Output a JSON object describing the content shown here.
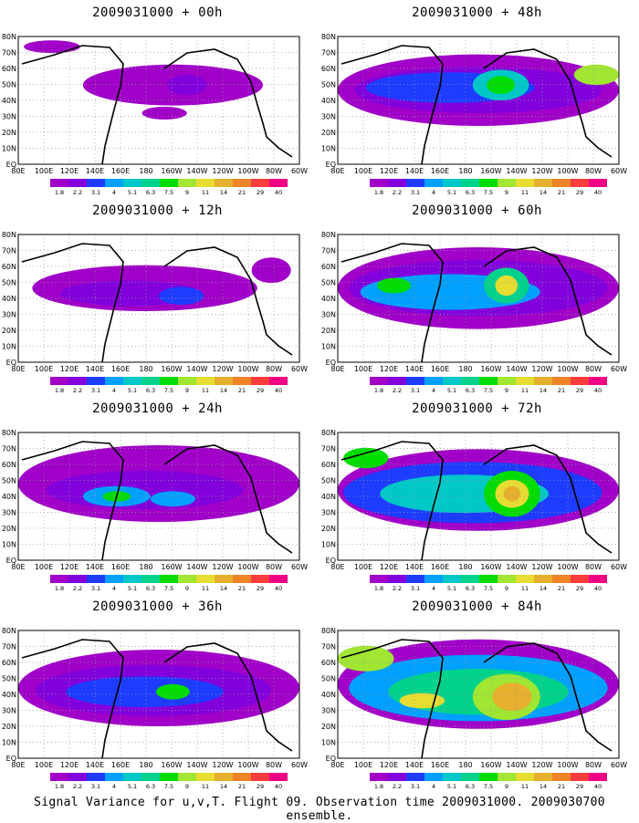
{
  "caption": "Signal Variance for u,v,T. Flight 09. Observation time 2009031000. 2009030700 ensemble.",
  "lat_labels": [
    "80N",
    "70N",
    "60N",
    "50N",
    "40N",
    "30N",
    "20N",
    "10N",
    "EQ"
  ],
  "lon_labels": [
    "80E",
    "100E",
    "120E",
    "140E",
    "160E",
    "180",
    "160W",
    "140W",
    "120W",
    "100W",
    "80W",
    "60W"
  ],
  "colorbar": {
    "labels": [
      "1.8",
      "2.2",
      "3.1",
      "4",
      "5.1",
      "6.3",
      "7.5",
      "9",
      "11",
      "14",
      "21",
      "29",
      "40"
    ],
    "colors": [
      "#a000c8",
      "#8200dc",
      "#1e3cff",
      "#00a0ff",
      "#00c8c8",
      "#00d28c",
      "#00dc00",
      "#a0e632",
      "#e6dc32",
      "#e6af2d",
      "#f08228",
      "#fa3c3c",
      "#f00082"
    ]
  },
  "panels": [
    {
      "title": "2009031000 + 00h"
    },
    {
      "title": "2009031000 + 48h"
    },
    {
      "title": "2009031000 + 12h"
    },
    {
      "title": "2009031000 + 60h"
    },
    {
      "title": "2009031000 + 24h"
    },
    {
      "title": "2009031000 + 72h"
    },
    {
      "title": "2009031000 + 36h"
    },
    {
      "title": "2009031000 + 84h"
    }
  ]
}
